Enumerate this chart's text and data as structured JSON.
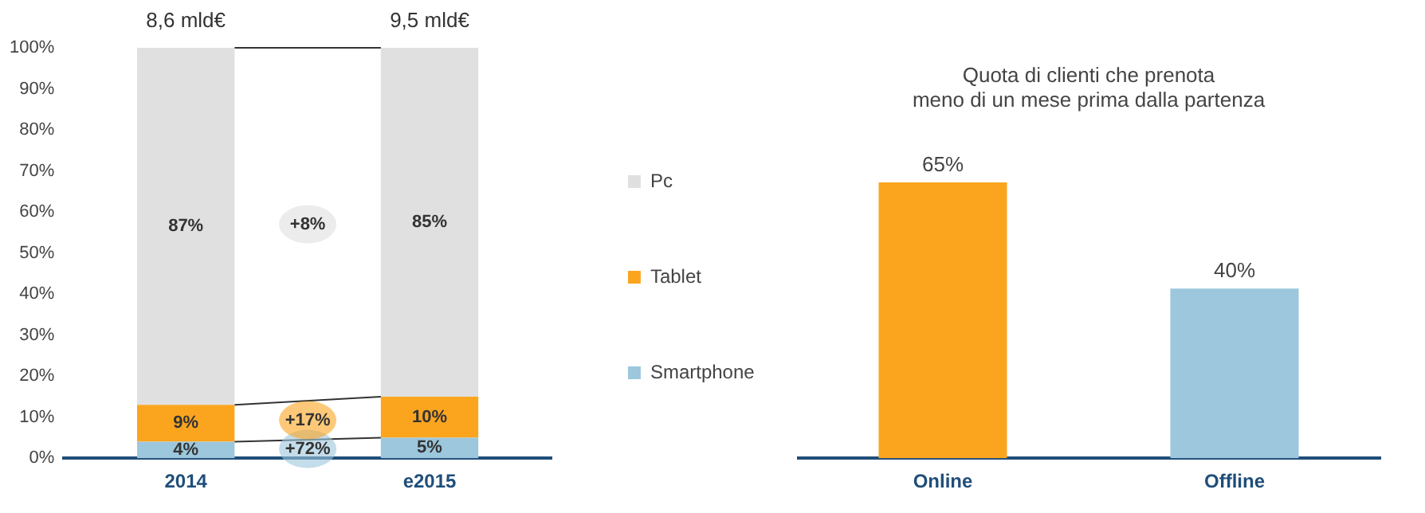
{
  "chart_data": [
    {
      "type": "bar",
      "stacked": true,
      "categories": [
        "2014",
        "e2015"
      ],
      "series": [
        {
          "name": "Smartphone",
          "color": "#9cc7dc",
          "values": [
            4,
            5
          ],
          "value_labels": [
            "4%",
            "5%"
          ]
        },
        {
          "name": "Tablet",
          "color": "#fba51f",
          "values": [
            9,
            10
          ],
          "value_labels": [
            "9%",
            "10%"
          ]
        },
        {
          "name": "Pc",
          "color": "#e0e0e0",
          "values": [
            87,
            85
          ],
          "value_labels": [
            "87%",
            "85%"
          ]
        }
      ],
      "ylim": [
        0,
        100
      ],
      "yticks": [
        {
          "value": 0,
          "label": "0%"
        },
        {
          "value": 10,
          "label": "10%"
        },
        {
          "value": 20,
          "label": "20%"
        },
        {
          "value": 30,
          "label": "30%"
        },
        {
          "value": 40,
          "label": "40%"
        },
        {
          "value": 50,
          "label": "50%"
        },
        {
          "value": 60,
          "label": "60%"
        },
        {
          "value": 70,
          "label": "70%"
        },
        {
          "value": 80,
          "label": "80%"
        },
        {
          "value": 90,
          "label": "90%"
        },
        {
          "value": 100,
          "label": "100%"
        }
      ],
      "annotations": [
        "+72%",
        "+17%",
        "+8%",
        {
          "text": "8,6 mld€",
          "x": "2014",
          "y": 100
        },
        {
          "text": "9,5 mld€",
          "x": "e2015",
          "y": 100
        }
      ],
      "grid": false,
      "legend": "right"
    },
    {
      "type": "bar",
      "title": "Quota di clienti che prenota\nmeno di un mese prima dalla partenza",
      "categories": [
        "Online",
        "Offline"
      ],
      "values": [
        65,
        40
      ],
      "colors": [
        "#fba51f",
        "#9cc7dc"
      ],
      "value_labels": [
        "65%",
        "40%"
      ],
      "tick_labels": "x",
      "grid": false
    }
  ]
}
